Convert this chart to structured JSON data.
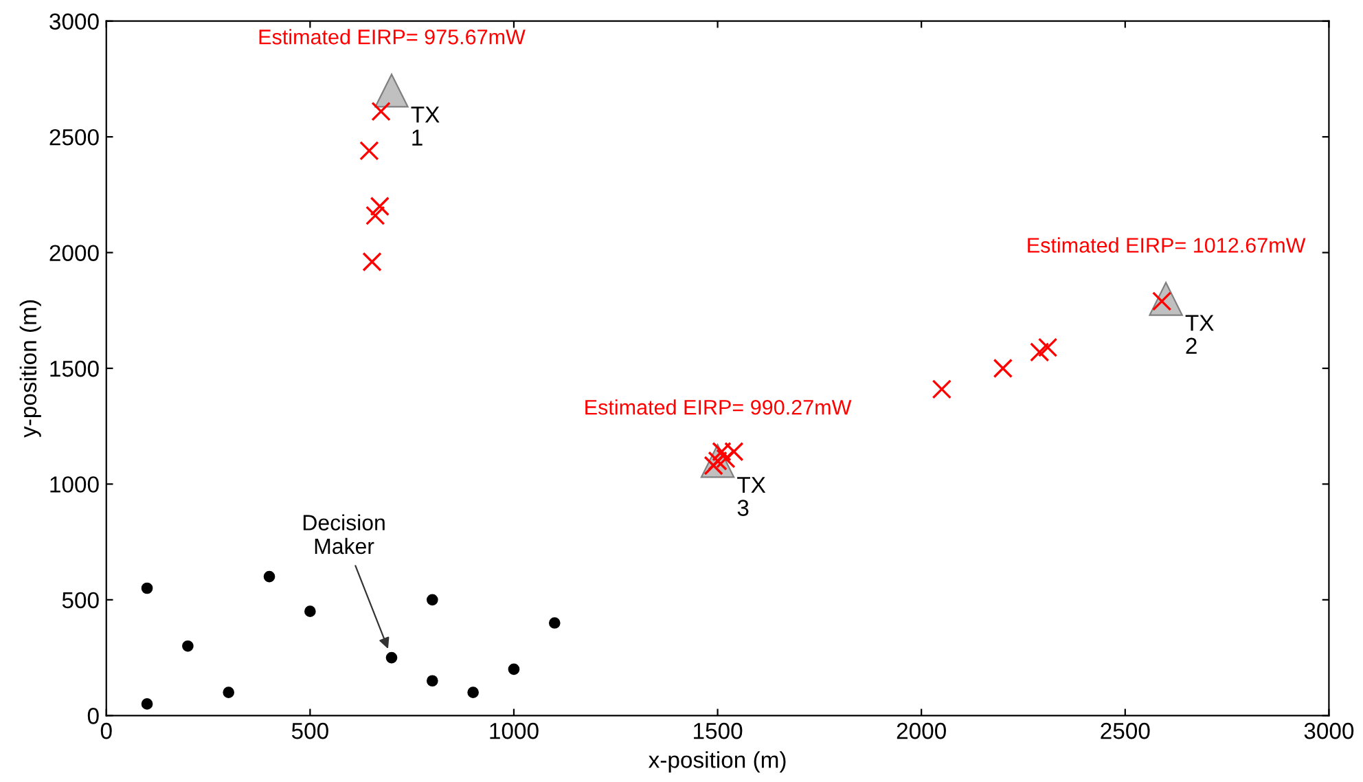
{
  "chart_data": {
    "type": "scatter",
    "xlabel": "x-position (m)",
    "ylabel": "y-position (m)",
    "xlim": [
      0,
      3000
    ],
    "ylim": [
      0,
      3000
    ],
    "xticks": [
      0,
      500,
      1000,
      1500,
      2000,
      2500,
      3000
    ],
    "yticks": [
      0,
      500,
      1000,
      1500,
      2000,
      2500,
      3000
    ],
    "grid": false,
    "legend": false,
    "series": [
      {
        "color": "#000000",
        "marker": "circle",
        "x": [
          100,
          100,
          200,
          300,
          400,
          500,
          700,
          800,
          800,
          900,
          1000,
          1100
        ],
        "values": [
          50,
          550,
          300,
          100,
          600,
          450,
          250,
          500,
          150,
          100,
          200,
          400
        ]
      },
      {
        "color": "#c0c0c0",
        "marker": "triangle",
        "x": [
          700,
          2600,
          1500
        ],
        "values": [
          2700,
          1800,
          1100
        ]
      },
      {
        "color": "#ff0000",
        "marker": "cross",
        "x": [
          674,
          645,
          671,
          660,
          652,
          2050,
          2200,
          2290,
          2310,
          2590,
          1490,
          1510,
          1520,
          1540,
          1500
        ],
        "values": [
          2610,
          2440,
          2200,
          2160,
          1960,
          1410,
          1500,
          1570,
          1590,
          1790,
          1080,
          1140,
          1110,
          1140,
          1100
        ]
      }
    ],
    "annotations": [
      {
        "text": "Estimated EIRP= 975.67mW",
        "x": 700,
        "y": 2700
      },
      {
        "text": "Estimated EIRP= 1012.67mW",
        "x": 2600,
        "y": 1800
      },
      {
        "text": "Estimated EIRP= 990.27mW",
        "x": 1500,
        "y": 1100
      },
      {
        "text": "TX\n1",
        "x": 700,
        "y": 2700
      },
      {
        "text": "TX\n2",
        "x": 2600,
        "y": 1800
      },
      {
        "text": "TX\n3",
        "x": 1500,
        "y": 1100
      },
      {
        "text": "Decision\nMaker",
        "x": 700,
        "y": 250
      }
    ]
  }
}
